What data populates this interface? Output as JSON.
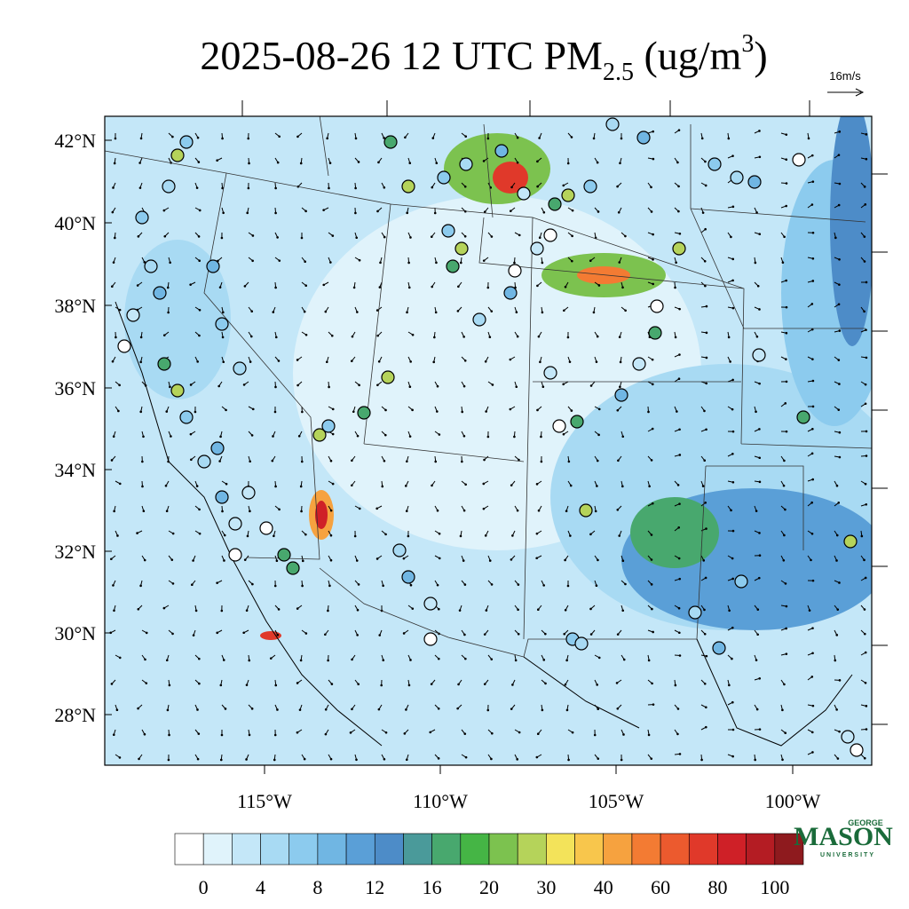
{
  "title": {
    "prefix": "2025-08-26 12 UTC PM",
    "subscript": "2.5",
    "middle": " (ug/m",
    "superscript": "3",
    "suffix": ")"
  },
  "wind_reference": "16m/s",
  "latitude_labels": [
    "42°N",
    "40°N",
    "38°N",
    "36°N",
    "34°N",
    "32°N",
    "30°N",
    "28°N"
  ],
  "longitude_labels": [
    "115°W",
    "110°W",
    "105°W",
    "100°W"
  ],
  "colorbar": {
    "ticks": [
      0,
      4,
      8,
      12,
      16,
      20,
      30,
      40,
      60,
      80,
      100
    ],
    "colors": [
      "#ffffff",
      "#e0f3fb",
      "#c4e7f8",
      "#a8daf3",
      "#8ccbee",
      "#70b6e3",
      "#5a9fd7",
      "#4d8cc8",
      "#4a9a9a",
      "#48a86e",
      "#45b545",
      "#7cc24f",
      "#b5d35a",
      "#f3e35a",
      "#f8c64c",
      "#f6a23f",
      "#f37b33",
      "#ec5a2e",
      "#e0392a",
      "#cf2027",
      "#b41c23",
      "#8e1a1e"
    ]
  },
  "logo": {
    "top": "GEORGE",
    "main": "MASON",
    "bottom": "UNIVERSITY"
  }
}
